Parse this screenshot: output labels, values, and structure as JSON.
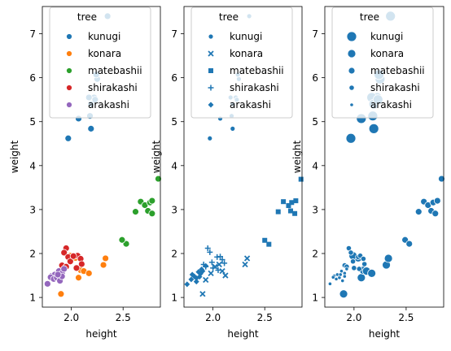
{
  "chart_data": [
    {
      "type": "scatter",
      "variant": "hue",
      "xlabel": "height",
      "ylabel": "weight",
      "xlim": [
        1.72,
        2.86
      ],
      "ylim": [
        0.78,
        7.62
      ],
      "xticks": [
        2.0,
        2.5
      ],
      "xtick_labels": [
        "2.0",
        "2.5"
      ],
      "yticks": [
        1,
        2,
        3,
        4,
        5,
        6,
        7
      ],
      "ytick_labels": [
        "1",
        "2",
        "3",
        "4",
        "5",
        "6",
        "7"
      ],
      "legend": {
        "title": "tree",
        "placement": "top"
      },
      "colors": {
        "kunugi": "#1f77b4",
        "konara": "#ff7f0e",
        "matebashii": "#2ca02c",
        "shirakashi": "#d62728",
        "arakashi": "#9467bd"
      },
      "series": [
        {
          "name": "kunugi",
          "x": [
            1.97,
            2.07,
            2.19,
            2.18,
            2.22,
            2.17,
            2.25,
            2.24,
            2.35,
            2.19,
            2.23
          ],
          "y": [
            4.62,
            5.07,
            4.84,
            5.13,
            5.55,
            5.55,
            5.97,
            6.07,
            7.4,
            5.4,
            5.5
          ]
        },
        {
          "name": "konara",
          "x": [
            2.09,
            2.12,
            2.17,
            2.31,
            2.33,
            2.04,
            2.07,
            1.99,
            1.9
          ],
          "y": [
            1.62,
            1.6,
            1.55,
            1.74,
            1.89,
            1.9,
            1.45,
            1.95,
            1.08
          ]
        },
        {
          "name": "matebashii",
          "x": [
            2.53,
            2.49,
            2.62,
            2.67,
            2.71,
            2.74,
            2.76,
            2.78,
            2.78,
            2.84
          ],
          "y": [
            2.22,
            2.31,
            2.95,
            3.18,
            3.1,
            2.97,
            3.16,
            2.91,
            3.2,
            3.7
          ]
        },
        {
          "name": "shirakashi",
          "x": [
            1.95,
            1.93,
            1.97,
            2.06,
            2.09,
            1.99,
            1.91,
            1.95,
            2.05,
            2.1,
            2.02
          ],
          "y": [
            2.12,
            2.02,
            1.92,
            1.95,
            1.88,
            1.82,
            1.73,
            1.7,
            1.67,
            1.76,
            1.94
          ]
        },
        {
          "name": "arakashi",
          "x": [
            1.77,
            1.81,
            1.84,
            1.8,
            1.83,
            1.86,
            1.88,
            1.91,
            1.89,
            1.93,
            1.91,
            1.87
          ],
          "y": [
            1.31,
            1.49,
            1.52,
            1.46,
            1.42,
            1.45,
            1.6,
            1.55,
            1.38,
            1.65,
            1.48,
            1.52
          ]
        }
      ]
    },
    {
      "type": "scatter",
      "variant": "style",
      "xlabel": "height",
      "ylabel": "weight",
      "xlim": [
        1.72,
        2.86
      ],
      "ylim": [
        0.78,
        7.62
      ],
      "xticks": [
        2.0,
        2.5
      ],
      "xtick_labels": [
        "2.0",
        "2.5"
      ],
      "yticks": [
        1,
        2,
        3,
        4,
        5,
        6,
        7
      ],
      "ytick_labels": [
        "1",
        "2",
        "3",
        "4",
        "5",
        "6",
        "7"
      ],
      "legend": {
        "title": "tree",
        "placement": "top"
      },
      "color": "#1f77b4",
      "markers": {
        "kunugi": "circle",
        "konara": "x",
        "matebashii": "square",
        "shirakashi": "plus",
        "arakashi": "diamond"
      },
      "series": [
        {
          "name": "kunugi",
          "x": [
            1.97,
            2.07,
            2.19,
            2.18,
            2.22,
            2.17,
            2.25,
            2.24,
            2.35,
            2.19,
            2.23
          ],
          "y": [
            4.62,
            5.07,
            4.84,
            5.13,
            5.55,
            5.55,
            5.97,
            6.07,
            7.4,
            5.4,
            5.5
          ]
        },
        {
          "name": "konara",
          "x": [
            1.9,
            1.93,
            1.98,
            2.02,
            2.06,
            2.09,
            2.12,
            2.31,
            2.33
          ],
          "y": [
            1.08,
            1.4,
            1.55,
            1.7,
            1.75,
            1.6,
            1.5,
            1.75,
            1.89
          ]
        },
        {
          "name": "matebashii",
          "x": [
            2.5,
            2.54,
            2.63,
            2.68,
            2.73,
            2.75,
            2.76,
            2.79,
            2.8,
            2.85
          ],
          "y": [
            2.3,
            2.21,
            2.95,
            3.18,
            3.09,
            2.97,
            3.16,
            2.91,
            3.2,
            3.69
          ]
        },
        {
          "name": "shirakashi",
          "x": [
            1.95,
            1.97,
            2.04,
            2.07,
            2.09,
            1.91,
            1.99,
            2.0,
            2.05,
            2.11,
            1.93
          ],
          "y": [
            2.12,
            2.03,
            1.92,
            1.93,
            1.86,
            1.75,
            1.8,
            1.67,
            1.62,
            1.78,
            1.7
          ]
        },
        {
          "name": "arakashi",
          "x": [
            1.75,
            1.79,
            1.82,
            1.8,
            1.84,
            1.86,
            1.88,
            1.9,
            1.84,
            1.87,
            1.93,
            1.89
          ],
          "y": [
            1.3,
            1.41,
            1.48,
            1.52,
            1.44,
            1.58,
            1.54,
            1.6,
            1.36,
            1.47,
            1.72,
            1.64
          ]
        }
      ]
    },
    {
      "type": "scatter",
      "variant": "size",
      "xlabel": "height",
      "ylabel": "weight",
      "xlim": [
        1.72,
        2.86
      ],
      "ylim": [
        0.78,
        7.62
      ],
      "xticks": [
        2.0,
        2.5
      ],
      "xtick_labels": [
        "2.0",
        "2.5"
      ],
      "yticks": [
        1,
        2,
        3,
        4,
        5,
        6,
        7
      ],
      "ytick_labels": [
        "1",
        "2",
        "3",
        "4",
        "5",
        "6",
        "7"
      ],
      "legend": {
        "title": "tree",
        "placement": "top"
      },
      "color": "#1f77b4",
      "size_order": [
        "kunugi",
        "konara",
        "matebashii",
        "shirakashi",
        "arakashi"
      ],
      "series": [
        {
          "name": "kunugi",
          "x": [
            1.97,
            2.07,
            2.19,
            2.18,
            2.22,
            2.17,
            2.25,
            2.24,
            2.35,
            2.19,
            2.23
          ],
          "y": [
            4.62,
            5.07,
            4.84,
            5.13,
            5.55,
            5.55,
            5.97,
            6.07,
            7.4,
            5.4,
            5.5
          ]
        },
        {
          "name": "konara",
          "x": [
            1.9,
            2.04,
            2.07,
            2.09,
            2.12,
            2.17,
            2.31,
            2.33,
            1.99
          ],
          "y": [
            1.08,
            1.9,
            1.45,
            1.62,
            1.6,
            1.55,
            1.74,
            1.89,
            1.95
          ]
        },
        {
          "name": "matebashii",
          "x": [
            2.49,
            2.53,
            2.62,
            2.67,
            2.71,
            2.74,
            2.76,
            2.78,
            2.8,
            2.84
          ],
          "y": [
            2.31,
            2.22,
            2.95,
            3.18,
            3.1,
            2.97,
            3.16,
            2.91,
            3.2,
            3.7
          ]
        },
        {
          "name": "shirakashi",
          "x": [
            1.95,
            1.97,
            2.04,
            2.06,
            2.09,
            1.91,
            1.99,
            2.0,
            2.05,
            2.1,
            1.93
          ],
          "y": [
            2.12,
            2.02,
            1.92,
            1.95,
            1.88,
            1.73,
            1.82,
            1.67,
            1.65,
            1.76,
            1.7
          ]
        },
        {
          "name": "arakashi",
          "x": [
            1.77,
            1.81,
            1.84,
            1.8,
            1.83,
            1.86,
            1.88,
            1.91,
            1.89,
            1.93,
            1.91,
            1.87
          ],
          "y": [
            1.31,
            1.49,
            1.52,
            1.46,
            1.42,
            1.45,
            1.6,
            1.55,
            1.38,
            1.65,
            1.48,
            1.52
          ]
        }
      ]
    }
  ]
}
